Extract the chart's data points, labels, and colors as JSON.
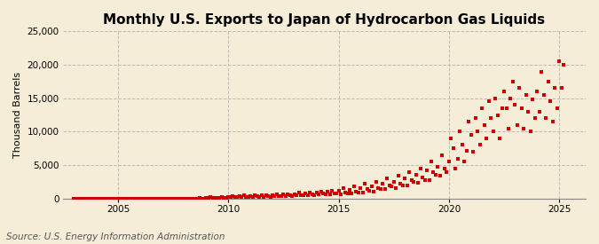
{
  "title": "Monthly U.S. Exports to Japan of Hydrocarbon Gas Liquids",
  "ylabel": "Thousand Barrels",
  "source": "Source: U.S. Energy Information Administration",
  "bg_color": "#F5EDD8",
  "marker_color": "#CC0000",
  "ylim": [
    0,
    25000
  ],
  "yticks": [
    0,
    5000,
    10000,
    15000,
    20000,
    25000
  ],
  "xlim_start": 2002.5,
  "xlim_end": 2026.2,
  "xticks": [
    2005,
    2010,
    2015,
    2020,
    2025
  ],
  "title_fontsize": 11,
  "ylabel_fontsize": 8,
  "source_fontsize": 7.5,
  "data": [
    [
      2003.0,
      5
    ],
    [
      2003.1,
      3
    ],
    [
      2003.2,
      4
    ],
    [
      2003.3,
      6
    ],
    [
      2003.4,
      3
    ],
    [
      2003.5,
      5
    ],
    [
      2003.6,
      4
    ],
    [
      2003.7,
      7
    ],
    [
      2003.8,
      4
    ],
    [
      2003.9,
      3
    ],
    [
      2004.0,
      6
    ],
    [
      2004.1,
      4
    ],
    [
      2004.2,
      8
    ],
    [
      2004.3,
      5
    ],
    [
      2004.4,
      6
    ],
    [
      2004.5,
      4
    ],
    [
      2004.6,
      7
    ],
    [
      2004.7,
      5
    ],
    [
      2004.8,
      6
    ],
    [
      2004.9,
      4
    ],
    [
      2005.0,
      10
    ],
    [
      2005.1,
      6
    ],
    [
      2005.2,
      8
    ],
    [
      2005.3,
      5
    ],
    [
      2005.4,
      7
    ],
    [
      2005.5,
      9
    ],
    [
      2005.6,
      6
    ],
    [
      2005.7,
      8
    ],
    [
      2005.8,
      7
    ],
    [
      2005.9,
      5
    ],
    [
      2006.0,
      12
    ],
    [
      2006.1,
      8
    ],
    [
      2006.2,
      15
    ],
    [
      2006.3,
      10
    ],
    [
      2006.4,
      8
    ],
    [
      2006.5,
      12
    ],
    [
      2006.6,
      9
    ],
    [
      2006.7,
      14
    ],
    [
      2006.8,
      11
    ],
    [
      2006.9,
      8
    ],
    [
      2007.0,
      20
    ],
    [
      2007.1,
      15
    ],
    [
      2007.2,
      25
    ],
    [
      2007.3,
      18
    ],
    [
      2007.4,
      12
    ],
    [
      2007.5,
      22
    ],
    [
      2007.6,
      16
    ],
    [
      2007.7,
      28
    ],
    [
      2007.8,
      19
    ],
    [
      2007.9,
      14
    ],
    [
      2008.0,
      30
    ],
    [
      2008.1,
      20
    ],
    [
      2008.2,
      40
    ],
    [
      2008.3,
      25
    ],
    [
      2008.4,
      18
    ],
    [
      2008.5,
      35
    ],
    [
      2008.6,
      22
    ],
    [
      2008.7,
      45
    ],
    [
      2008.8,
      28
    ],
    [
      2008.9,
      20
    ],
    [
      2009.0,
      150
    ],
    [
      2009.1,
      80
    ],
    [
      2009.2,
      200
    ],
    [
      2009.3,
      120
    ],
    [
      2009.4,
      90
    ],
    [
      2009.5,
      170
    ],
    [
      2009.6,
      100
    ],
    [
      2009.7,
      220
    ],
    [
      2009.8,
      140
    ],
    [
      2009.9,
      110
    ],
    [
      2010.0,
      300
    ],
    [
      2010.1,
      180
    ],
    [
      2010.2,
      400
    ],
    [
      2010.3,
      250
    ],
    [
      2010.4,
      200
    ],
    [
      2010.5,
      350
    ],
    [
      2010.6,
      220
    ],
    [
      2010.7,
      450
    ],
    [
      2010.8,
      280
    ],
    [
      2010.9,
      220
    ],
    [
      2011.0,
      400
    ],
    [
      2011.1,
      250
    ],
    [
      2011.2,
      500
    ],
    [
      2011.3,
      320
    ],
    [
      2011.4,
      280
    ],
    [
      2011.5,
      450
    ],
    [
      2011.6,
      300
    ],
    [
      2011.7,
      550
    ],
    [
      2011.8,
      380
    ],
    [
      2011.9,
      300
    ],
    [
      2012.0,
      550
    ],
    [
      2012.1,
      350
    ],
    [
      2012.2,
      650
    ],
    [
      2012.3,
      420
    ],
    [
      2012.4,
      380
    ],
    [
      2012.5,
      600
    ],
    [
      2012.6,
      400
    ],
    [
      2012.7,
      700
    ],
    [
      2012.8,
      480
    ],
    [
      2012.9,
      400
    ],
    [
      2013.0,
      700
    ],
    [
      2013.1,
      450
    ],
    [
      2013.2,
      850
    ],
    [
      2013.3,
      550
    ],
    [
      2013.4,
      500
    ],
    [
      2013.5,
      750
    ],
    [
      2013.6,
      520
    ],
    [
      2013.7,
      900
    ],
    [
      2013.8,
      620
    ],
    [
      2013.9,
      520
    ],
    [
      2014.0,
      900
    ],
    [
      2014.1,
      600
    ],
    [
      2014.2,
      1100
    ],
    [
      2014.3,
      750
    ],
    [
      2014.4,
      680
    ],
    [
      2014.5,
      980
    ],
    [
      2014.6,
      700
    ],
    [
      2014.7,
      1200
    ],
    [
      2014.8,
      820
    ],
    [
      2014.9,
      720
    ],
    [
      2015.0,
      1200
    ],
    [
      2015.1,
      600
    ],
    [
      2015.2,
      1500
    ],
    [
      2015.3,
      900
    ],
    [
      2015.4,
      800
    ],
    [
      2015.5,
      1300
    ],
    [
      2015.6,
      750
    ],
    [
      2015.7,
      1800
    ],
    [
      2015.8,
      1100
    ],
    [
      2015.9,
      950
    ],
    [
      2016.0,
      1600
    ],
    [
      2016.1,
      900
    ],
    [
      2016.2,
      2200
    ],
    [
      2016.3,
      1400
    ],
    [
      2016.4,
      1200
    ],
    [
      2016.5,
      1800
    ],
    [
      2016.6,
      1100
    ],
    [
      2016.7,
      2500
    ],
    [
      2016.8,
      1600
    ],
    [
      2016.9,
      1400
    ],
    [
      2017.0,
      2200
    ],
    [
      2017.1,
      1400
    ],
    [
      2017.2,
      3000
    ],
    [
      2017.3,
      2000
    ],
    [
      2017.4,
      1800
    ],
    [
      2017.5,
      2500
    ],
    [
      2017.6,
      1600
    ],
    [
      2017.7,
      3400
    ],
    [
      2017.8,
      2200
    ],
    [
      2017.9,
      2000
    ],
    [
      2018.0,
      3000
    ],
    [
      2018.1,
      2000
    ],
    [
      2018.2,
      4000
    ],
    [
      2018.3,
      2800
    ],
    [
      2018.4,
      2500
    ],
    [
      2018.5,
      3500
    ],
    [
      2018.6,
      2400
    ],
    [
      2018.7,
      4500
    ],
    [
      2018.8,
      3200
    ],
    [
      2018.9,
      2800
    ],
    [
      2019.0,
      4200
    ],
    [
      2019.1,
      2800
    ],
    [
      2019.2,
      5500
    ],
    [
      2019.3,
      4000
    ],
    [
      2019.4,
      3500
    ],
    [
      2019.5,
      4800
    ],
    [
      2019.6,
      3400
    ],
    [
      2019.7,
      6500
    ],
    [
      2019.8,
      4500
    ],
    [
      2019.9,
      4000
    ],
    [
      2020.0,
      5500
    ],
    [
      2020.1,
      9000
    ],
    [
      2020.2,
      7500
    ],
    [
      2020.3,
      4500
    ],
    [
      2020.4,
      6000
    ],
    [
      2020.5,
      10000
    ],
    [
      2020.6,
      8000
    ],
    [
      2020.7,
      5500
    ],
    [
      2020.8,
      7200
    ],
    [
      2020.9,
      11500
    ],
    [
      2021.0,
      9500
    ],
    [
      2021.1,
      7000
    ],
    [
      2021.2,
      12000
    ],
    [
      2021.3,
      10000
    ],
    [
      2021.4,
      8000
    ],
    [
      2021.5,
      13500
    ],
    [
      2021.6,
      11000
    ],
    [
      2021.7,
      9000
    ],
    [
      2021.8,
      14500
    ],
    [
      2021.9,
      12000
    ],
    [
      2022.0,
      10000
    ],
    [
      2022.1,
      15000
    ],
    [
      2022.2,
      12500
    ],
    [
      2022.3,
      9000
    ],
    [
      2022.4,
      13500
    ],
    [
      2022.5,
      16000
    ],
    [
      2022.6,
      13500
    ],
    [
      2022.7,
      10500
    ],
    [
      2022.8,
      15000
    ],
    [
      2022.9,
      17500
    ],
    [
      2023.0,
      14000
    ],
    [
      2023.1,
      11000
    ],
    [
      2023.2,
      16500
    ],
    [
      2023.3,
      13500
    ],
    [
      2023.4,
      10500
    ],
    [
      2023.5,
      15500
    ],
    [
      2023.6,
      13000
    ],
    [
      2023.7,
      10000
    ],
    [
      2023.8,
      14800
    ],
    [
      2023.9,
      12000
    ],
    [
      2024.0,
      16000
    ],
    [
      2024.1,
      13000
    ],
    [
      2024.2,
      19000
    ],
    [
      2024.3,
      15500
    ],
    [
      2024.4,
      12000
    ],
    [
      2024.5,
      17500
    ],
    [
      2024.6,
      14500
    ],
    [
      2024.7,
      11500
    ],
    [
      2024.8,
      16500
    ],
    [
      2024.9,
      13500
    ],
    [
      2025.0,
      20500
    ],
    [
      2025.1,
      16500
    ],
    [
      2025.2,
      20000
    ]
  ]
}
